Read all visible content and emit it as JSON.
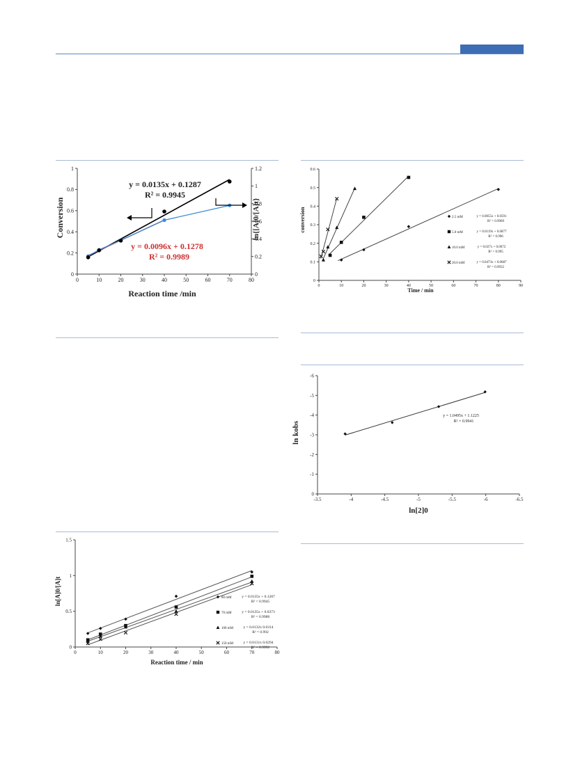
{
  "colors": {
    "header": "#3e6cb5",
    "rule": "#a9bbd6",
    "fit_red": "#d03030",
    "fit_blue": "#3a8ad8"
  },
  "chart_data": [
    {
      "type": "line",
      "xlabel": "Reaction time /min",
      "ylabel_left": "Conversion",
      "ylabel_right": "ln{[A]0/[A]t}",
      "xlim": [
        0,
        80
      ],
      "ylim_left": [
        0,
        1
      ],
      "ylim_right": [
        0,
        1.2
      ],
      "x_ticks": [
        0,
        10,
        20,
        30,
        40,
        50,
        60,
        70,
        80
      ],
      "y_ticks_left": [
        0,
        0.2,
        0.4,
        0.6,
        0.8,
        1
      ],
      "y_ticks_right": [
        0,
        0.2,
        0.4,
        0.6,
        0.8,
        1,
        1.2
      ],
      "series": [
        {
          "axis": "right",
          "x": [
            5,
            10,
            20,
            40,
            70
          ],
          "y": [
            0.19,
            0.27,
            0.38,
            0.71,
            1.05
          ],
          "color": "#000000",
          "marker": "circle",
          "fit": {
            "slope": 0.0135,
            "intercept": 0.1287,
            "color": "#000000"
          }
        },
        {
          "axis": "left",
          "x": [
            5,
            10,
            20,
            40,
            70
          ],
          "y": [
            0.17,
            0.23,
            0.32,
            0.51,
            0.65
          ],
          "color": "#3a8ad8",
          "marker": "circle",
          "fit": {
            "slope": 0.0096,
            "intercept": 0.1278,
            "color": "#d03030",
            "x_range": [
              5,
              40
            ]
          }
        }
      ],
      "annotations": [
        {
          "text": "y = 0.0135x + 0.1287",
          "color": "#000000"
        },
        {
          "text": "R² = 0.9945",
          "color": "#000000"
        },
        {
          "text": "y = 0.0096x + 0.1278",
          "color": "#d03030"
        },
        {
          "text": "R² = 0.9989",
          "color": "#d03030"
        }
      ]
    },
    {
      "type": "scatter",
      "xlabel": "Time / min",
      "ylabel": "conversion",
      "xlim": [
        0,
        90
      ],
      "ylim": [
        0,
        0.6
      ],
      "x_ticks": [
        0,
        10,
        20,
        30,
        40,
        50,
        60,
        70,
        80,
        90
      ],
      "y_ticks": [
        0,
        0.1,
        0.2,
        0.3,
        0.4,
        0.5,
        0.6
      ],
      "series": [
        {
          "name": "2.5 mM",
          "marker": "diamond",
          "x": [
            10,
            20,
            40,
            80
          ],
          "y": [
            0.11,
            0.165,
            0.29,
            0.49
          ],
          "eq": "y = 0.0055x + 0.0591",
          "r2": "R² = 0.9969"
        },
        {
          "name": "5.0 mM",
          "marker": "square",
          "x": [
            5,
            10,
            20,
            40
          ],
          "y": [
            0.135,
            0.205,
            0.34,
            0.555
          ],
          "eq": "y = 0.0119x + 0.0877",
          "r2": "R² = 0.996"
        },
        {
          "name": "10.0 mM",
          "marker": "triangle",
          "x": [
            2,
            4,
            8,
            16
          ],
          "y": [
            0.11,
            0.18,
            0.285,
            0.495
          ],
          "eq": "y = 0.027x + 0.0672",
          "r2": "R² = 0.995"
        },
        {
          "name": "20.0 mM",
          "marker": "x",
          "x": [
            1,
            2,
            4,
            8
          ],
          "y": [
            0.13,
            0.155,
            0.275,
            0.44
          ],
          "eq": "y = 0.0473x + 0.0687",
          "r2": "R² = 0.9932"
        }
      ]
    },
    {
      "type": "scatter",
      "xlabel": "ln[2]0",
      "ylabel": "ln kobs",
      "xlim": [
        -3.5,
        -6.5
      ],
      "ylim": [
        0,
        -6
      ],
      "x_ticks": [
        -3.5,
        -4,
        -4.5,
        -5,
        -5.5,
        -6,
        -6.5
      ],
      "y_ticks": [
        0,
        -1,
        -2,
        -3,
        -4,
        -5,
        -6
      ],
      "series": [
        {
          "x": [
            -3.91,
            -4.61,
            -5.3,
            -5.99
          ],
          "y": [
            -3.05,
            -3.62,
            -4.43,
            -5.18
          ],
          "marker": "diamond"
        }
      ],
      "annotations": [
        {
          "text": "y = 1.0495x + 1.1225"
        },
        {
          "text": "R² = 0.9941"
        }
      ]
    },
    {
      "type": "scatter",
      "xlabel": "Reaction time / min",
      "ylabel": "ln[A]0/[A]t",
      "xlim": [
        0,
        80
      ],
      "ylim": [
        0,
        1.5
      ],
      "x_ticks": [
        0,
        10,
        20,
        30,
        40,
        50,
        60,
        70,
        80
      ],
      "y_ticks": [
        0,
        0.5,
        1,
        1.5
      ],
      "series": [
        {
          "name": "80 mM",
          "marker": "diamond",
          "x": [
            5,
            10,
            20,
            40,
            70
          ],
          "y": [
            0.19,
            0.26,
            0.39,
            0.71,
            1.05
          ],
          "eq": "y = 0.0135x + 0.1287",
          "r2": "R² = 0.9945"
        },
        {
          "name": "70 mM",
          "marker": "square",
          "x": [
            5,
            10,
            20,
            40,
            70
          ],
          "y": [
            0.1,
            0.18,
            0.3,
            0.56,
            0.99
          ],
          "eq": "y = 0.0135x + 0.0373",
          "r2": "R² = 0.9988"
        },
        {
          "name": "100 mM",
          "marker": "triangle",
          "x": [
            5,
            10,
            20,
            40,
            70
          ],
          "y": [
            0.08,
            0.15,
            0.28,
            0.5,
            0.92
          ],
          "eq": "y = 0.0132x   0.0314",
          "r2": "R² = 0.992"
        },
        {
          "name": "150 mM",
          "marker": "x",
          "x": [
            5,
            10,
            20,
            40,
            70
          ],
          "y": [
            0.05,
            0.11,
            0.2,
            0.46,
            0.89
          ],
          "eq": "y = 0.0131x   0.0294",
          "r2": "R² = 0.9992"
        }
      ]
    }
  ]
}
